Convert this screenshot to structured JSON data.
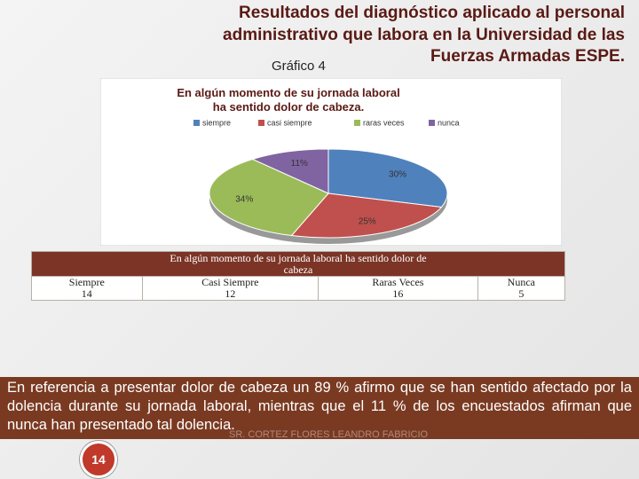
{
  "header": {
    "title_lines": [
      "Resultados del diagnóstico aplicado al personal",
      "administrativo que labora en la Universidad de las",
      "Fuerzas Armadas ESPE."
    ],
    "figure_label": "Gráfico 4"
  },
  "chart_data": {
    "type": "pie",
    "title": "En algún momento de su jornada laboral ha sentido dolor de cabeza.",
    "categories": [
      "siempre",
      "casi siempre",
      "raras veces",
      "nunca"
    ],
    "values": [
      30,
      25,
      34,
      11
    ],
    "value_labels": [
      "30%",
      "25%",
      "34%",
      "11%"
    ],
    "colors": [
      "#4f81bd",
      "#c0504d",
      "#9bbb59",
      "#8064a2"
    ]
  },
  "table": {
    "header": "En algún momento de su jornada laboral ha sentido dolor de cabeza",
    "rows": [
      [
        "Siempre",
        "Casi Siempre",
        "Raras Veces",
        "Nunca"
      ],
      [
        "14",
        "12",
        "16",
        "5"
      ]
    ]
  },
  "text": {
    "paragraph": "En referencia a presentar dolor de cabeza un 89 % afirmo que se han sentido afectado por la dolencia durante su jornada laboral, mientras que el 11 % de los encuestados afirman que nunca han presentado tal dolencia."
  },
  "footer": {
    "author": "SR. CORTEZ FLORES LEANDRO FABRICIO",
    "page_number": "14"
  }
}
